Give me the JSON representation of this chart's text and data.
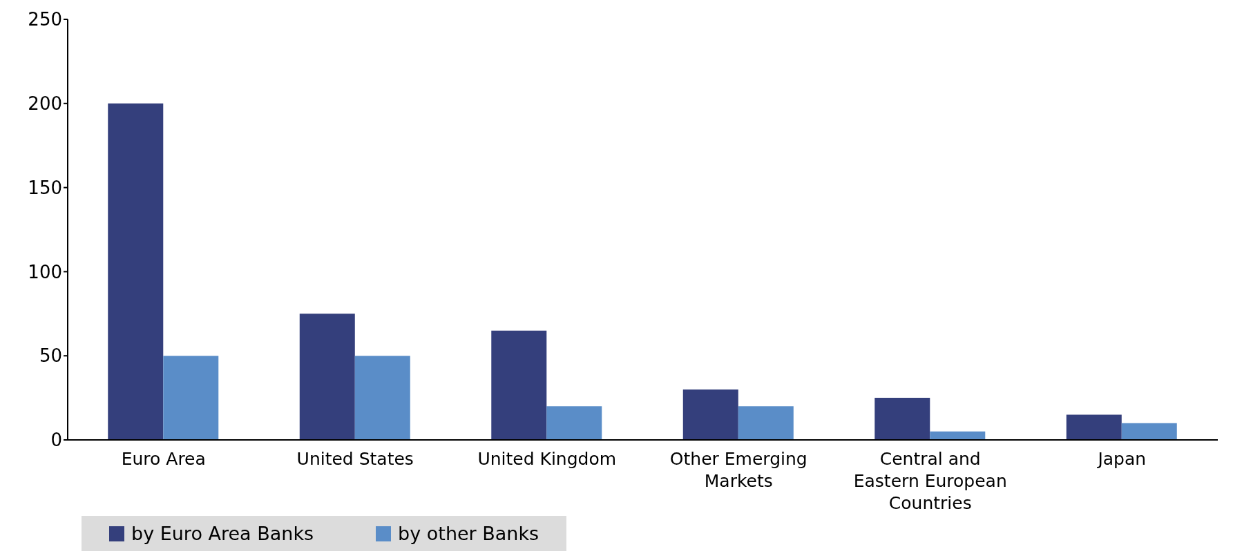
{
  "chart_data": {
    "type": "bar",
    "categories": [
      "Euro Area",
      "United States",
      "United Kingdom",
      "Other Emerging Markets",
      "Central and Eastern European Countries",
      "Japan"
    ],
    "series": [
      {
        "name": "by Euro Area Banks",
        "color": "#343f7c",
        "values": [
          200,
          75,
          65,
          30,
          25,
          15
        ]
      },
      {
        "name": "by other Banks",
        "color": "#5a8dc8",
        "values": [
          50,
          50,
          20,
          20,
          5,
          10
        ]
      }
    ],
    "ylim": [
      0,
      250
    ],
    "yticks": [
      0,
      50,
      100,
      150,
      200,
      250
    ],
    "legend": "bottom left"
  }
}
